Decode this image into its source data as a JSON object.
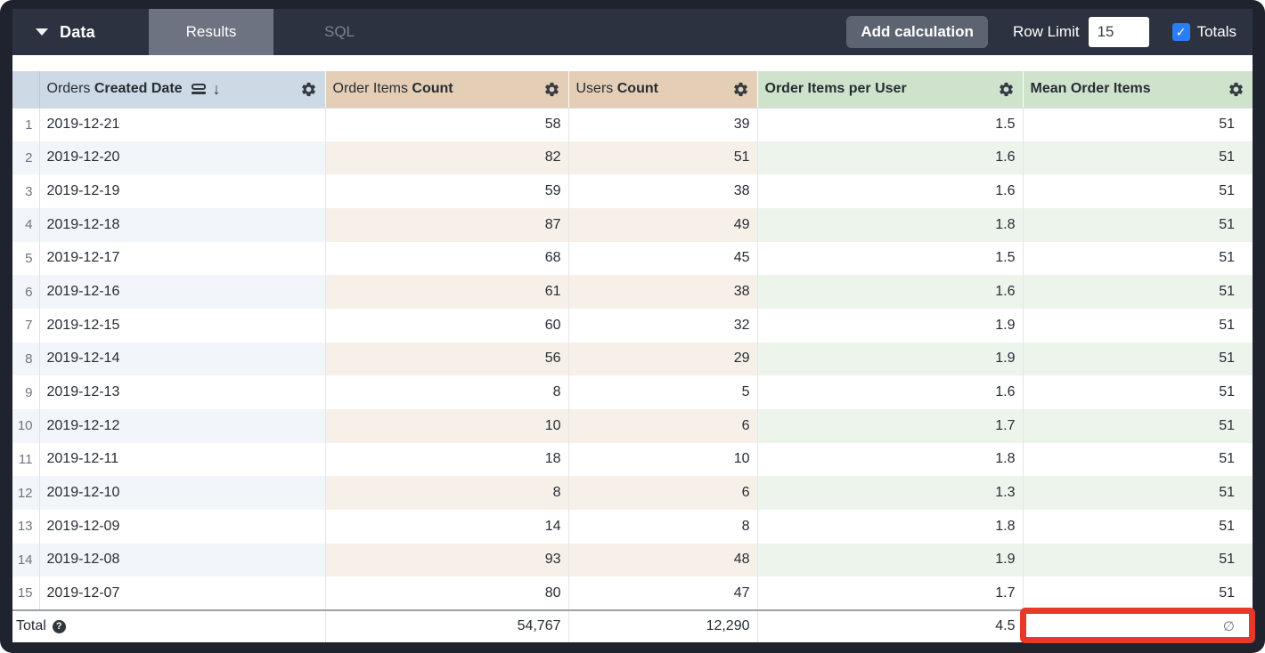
{
  "topbar": {
    "data_label": "Data",
    "tabs": {
      "results": "Results",
      "sql": "SQL"
    },
    "add_calculation_label": "Add calculation",
    "row_limit_label": "Row Limit",
    "row_limit_value": "15",
    "totals_label": "Totals",
    "totals_checked": true
  },
  "icons": {
    "check": "✓",
    "sort_desc": "↓",
    "help": "?"
  },
  "table": {
    "columns": [
      {
        "prefix": "Orders ",
        "bold": "Created Date"
      },
      {
        "prefix": "Order Items ",
        "bold": "Count"
      },
      {
        "prefix": "Users ",
        "bold": "Count"
      },
      {
        "prefix": "",
        "bold": "Order Items per User"
      },
      {
        "prefix": "",
        "bold": "Mean Order Items"
      }
    ],
    "rows": [
      {
        "num": "1",
        "date": "2019-12-21",
        "oic": "58",
        "uc": "39",
        "oipu": "1.5",
        "moi": "51"
      },
      {
        "num": "2",
        "date": "2019-12-20",
        "oic": "82",
        "uc": "51",
        "oipu": "1.6",
        "moi": "51"
      },
      {
        "num": "3",
        "date": "2019-12-19",
        "oic": "59",
        "uc": "38",
        "oipu": "1.6",
        "moi": "51"
      },
      {
        "num": "4",
        "date": "2019-12-18",
        "oic": "87",
        "uc": "49",
        "oipu": "1.8",
        "moi": "51"
      },
      {
        "num": "5",
        "date": "2019-12-17",
        "oic": "68",
        "uc": "45",
        "oipu": "1.5",
        "moi": "51"
      },
      {
        "num": "6",
        "date": "2019-12-16",
        "oic": "61",
        "uc": "38",
        "oipu": "1.6",
        "moi": "51"
      },
      {
        "num": "7",
        "date": "2019-12-15",
        "oic": "60",
        "uc": "32",
        "oipu": "1.9",
        "moi": "51"
      },
      {
        "num": "8",
        "date": "2019-12-14",
        "oic": "56",
        "uc": "29",
        "oipu": "1.9",
        "moi": "51"
      },
      {
        "num": "9",
        "date": "2019-12-13",
        "oic": "8",
        "uc": "5",
        "oipu": "1.6",
        "moi": "51"
      },
      {
        "num": "10",
        "date": "2019-12-12",
        "oic": "10",
        "uc": "6",
        "oipu": "1.7",
        "moi": "51"
      },
      {
        "num": "11",
        "date": "2019-12-11",
        "oic": "18",
        "uc": "10",
        "oipu": "1.8",
        "moi": "51"
      },
      {
        "num": "12",
        "date": "2019-12-10",
        "oic": "8",
        "uc": "6",
        "oipu": "1.3",
        "moi": "51"
      },
      {
        "num": "13",
        "date": "2019-12-09",
        "oic": "14",
        "uc": "8",
        "oipu": "1.8",
        "moi": "51"
      },
      {
        "num": "14",
        "date": "2019-12-08",
        "oic": "93",
        "uc": "48",
        "oipu": "1.9",
        "moi": "51"
      },
      {
        "num": "15",
        "date": "2019-12-07",
        "oic": "80",
        "uc": "47",
        "oipu": "1.7",
        "moi": "51"
      }
    ],
    "total": {
      "label": "Total",
      "oic": "54,767",
      "uc": "12,290",
      "oipu": "4.5",
      "moi": "∅"
    }
  },
  "colors": {
    "topbar_bg": "#2c323f",
    "active_tab_bg": "#6d7380",
    "header_dimension_bg": "#cdd9e5",
    "header_measure_tan_bg": "#e4cfb6",
    "header_measure_green_bg": "#cfe3cc",
    "band_dimension": "#f2f5f9",
    "band_tan": "#f7f0e8",
    "band_green": "#edf4ec",
    "checkbox_blue": "#2b7cf7",
    "annotation_red": "#e7382c"
  }
}
